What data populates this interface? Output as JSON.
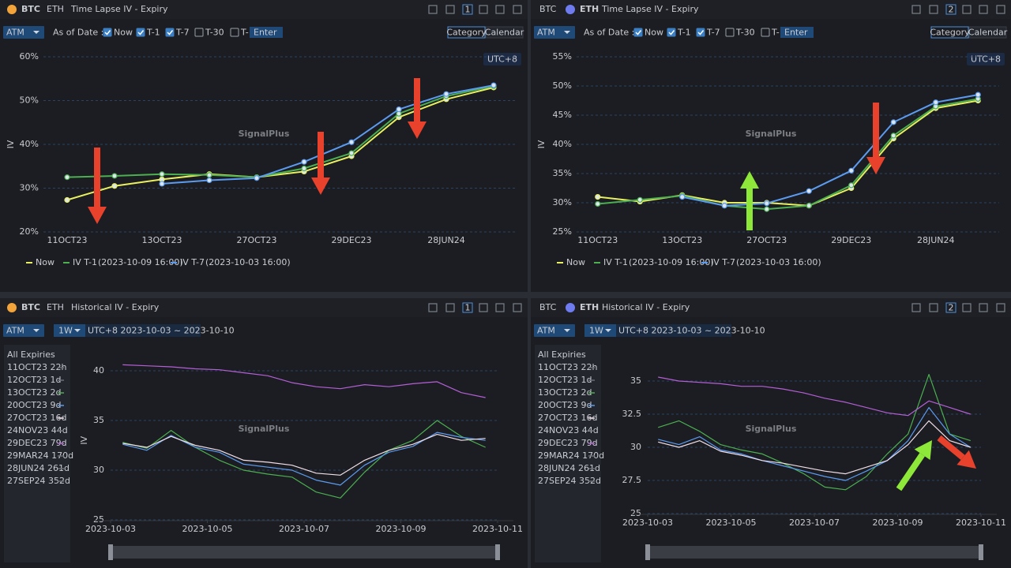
{
  "panels": [
    {
      "coins": [
        "BTC",
        "ETH"
      ],
      "active": "BTC",
      "title": "Time Lapse IV - Expiry",
      "number": "1",
      "mode": "ATM",
      "as_of": "As of Date :",
      "checks": [
        {
          "label": "Now",
          "checked": true
        },
        {
          "label": "T-1",
          "checked": true
        },
        {
          "label": "T-7",
          "checked": true
        },
        {
          "label": "T-30",
          "checked": false
        },
        {
          "label": "T-",
          "checked": false
        }
      ],
      "enter": "Enter",
      "tabs": [
        "Category",
        "Calendar"
      ],
      "tz": "UTC+8",
      "watermark": "SignalPlus"
    },
    {
      "coins": [
        "BTC",
        "ETH"
      ],
      "active": "ETH",
      "title": "Time Lapse IV - Expiry",
      "number": "2",
      "mode": "ATM",
      "as_of": "As of Date :",
      "checks": [
        {
          "label": "Now",
          "checked": true
        },
        {
          "label": "T-1",
          "checked": true
        },
        {
          "label": "T-7",
          "checked": true
        },
        {
          "label": "T-30",
          "checked": false
        },
        {
          "label": "T-",
          "checked": false
        }
      ],
      "enter": "Enter",
      "tabs": [
        "Category",
        "Calendar"
      ],
      "tz": "UTC+8",
      "watermark": "SignalPlus"
    },
    {
      "coins": [
        "BTC",
        "ETH"
      ],
      "active": "BTC",
      "title": "Historical IV - Expiry",
      "number": "1",
      "mode": "ATM",
      "period": "1W",
      "range": "UTC+8 2023-10-03 ~ 2023-10-10",
      "list_title": "All Expiries",
      "watermark": "SignalPlus"
    },
    {
      "coins": [
        "BTC",
        "ETH"
      ],
      "active": "ETH",
      "title": "Historical IV - Expiry",
      "number": "2",
      "mode": "ATM",
      "period": "1W",
      "range": "UTC+8 2023-10-03 ~ 2023-10-10",
      "list_title": "All Expiries",
      "watermark": "SignalPlus"
    }
  ],
  "chart_data": [
    {
      "type": "line",
      "y_label": "IV",
      "categories": [
        "11OCT23",
        null,
        "13OCT23",
        null,
        "27OCT23",
        null,
        "29DEC23",
        null,
        "28JUN24",
        null
      ],
      "series": [
        {
          "name": "Now",
          "color": "#e8f060",
          "values": [
            27.3,
            30.5,
            32.0,
            33.2,
            32.5,
            33.8,
            37.3,
            46.2,
            50.3,
            53.0
          ]
        },
        {
          "name": "IV T-1",
          "stamp": "(2023-10-09 16:00)",
          "color": "#4caf50",
          "values": [
            32.5,
            32.8,
            33.2,
            33.0,
            32.5,
            34.5,
            38.0,
            47.0,
            51.0,
            53.3
          ]
        },
        {
          "name": "IV T-7",
          "stamp": "(2023-10-03 16:00)",
          "color": "#5b9bf0",
          "values": [
            null,
            null,
            31.0,
            31.8,
            32.3,
            36.0,
            40.5,
            48.0,
            51.5,
            53.5
          ]
        }
      ],
      "ylim": [
        20,
        60
      ],
      "yticks": [
        {
          "value": 20,
          "label": "20%"
        },
        {
          "value": 30,
          "label": "30%"
        },
        {
          "value": 40,
          "label": "40%"
        },
        {
          "value": 50,
          "label": "50%"
        },
        {
          "value": 60,
          "label": "60%"
        }
      ],
      "grid": true
    },
    {
      "type": "line",
      "y_label": "IV",
      "categories": [
        "11OCT23",
        null,
        "13OCT23",
        null,
        "27OCT23",
        null,
        "29DEC23",
        null,
        "28JUN24",
        null
      ],
      "series": [
        {
          "name": "Now",
          "color": "#e8f060",
          "values": [
            31.0,
            30.2,
            31.3,
            30.0,
            30.0,
            29.5,
            32.5,
            41.0,
            46.2,
            47.5
          ]
        },
        {
          "name": "IV T-1",
          "stamp": "(2023-10-09 16:00)",
          "color": "#4caf50",
          "values": [
            29.8,
            30.5,
            31.2,
            29.5,
            28.9,
            29.5,
            33.0,
            41.5,
            46.5,
            47.8
          ]
        },
        {
          "name": "IV T-7",
          "stamp": "(2023-10-03 16:00)",
          "color": "#5b9bf0",
          "values": [
            null,
            null,
            31.0,
            29.5,
            29.9,
            32.0,
            35.5,
            43.8,
            47.2,
            48.5
          ]
        }
      ],
      "ylim": [
        25,
        55
      ],
      "yticks": [
        {
          "value": 25,
          "label": "25%"
        },
        {
          "value": 30,
          "label": "30%"
        },
        {
          "value": 35,
          "label": "35%"
        },
        {
          "value": 40,
          "label": "40%"
        },
        {
          "value": 45,
          "label": "45%"
        },
        {
          "value": 50,
          "label": "50%"
        },
        {
          "value": 55,
          "label": "55%"
        }
      ],
      "grid": true
    },
    {
      "type": "line",
      "y_label": "IV",
      "x": [
        0.25,
        0.75,
        1.25,
        1.75,
        2.25,
        2.75,
        3.25,
        3.75,
        4.25,
        4.75,
        5.25,
        5.75,
        6.25,
        6.75,
        7.25,
        7.75
      ],
      "xlim": [
        0,
        8
      ],
      "xticks": [
        {
          "value": 0,
          "label": "2023-10-03"
        },
        {
          "value": 2,
          "label": "2023-10-05"
        },
        {
          "value": 4,
          "label": "2023-10-07"
        },
        {
          "value": 6,
          "label": "2023-10-09"
        },
        {
          "value": 8,
          "label": "2023-10-11"
        }
      ],
      "series": [
        {
          "name": "11OCT23 22h",
          "color": "#6b6f78"
        },
        {
          "name": "12OCT23 1d",
          "color": "#6b6f78"
        },
        {
          "name": "13OCT23 2d",
          "color": "#4caf50",
          "values": [
            32.8,
            32.2,
            34.0,
            32.3,
            31.0,
            30.0,
            29.6,
            29.3,
            27.8,
            27.2,
            29.8,
            32.0,
            33.0,
            35.0,
            33.4,
            32.3
          ]
        },
        {
          "name": "20OCT23 9d",
          "color": "#5b9bf0",
          "values": [
            32.6,
            32.0,
            33.5,
            32.3,
            31.8,
            30.6,
            30.3,
            30.0,
            29.0,
            28.5,
            30.5,
            31.8,
            32.4,
            33.8,
            33.3,
            33.0
          ]
        },
        {
          "name": "27OCT23 16d",
          "color": "#f2dfe8",
          "values": [
            32.7,
            32.3,
            33.4,
            32.5,
            32.0,
            31.0,
            30.8,
            30.5,
            29.7,
            29.5,
            31.0,
            32.0,
            32.6,
            33.6,
            33.0,
            33.2
          ]
        },
        {
          "name": "24NOV23 44d",
          "color": "#6b6f78"
        },
        {
          "name": "29DEC23 79d",
          "color": "#b55fd6",
          "values": [
            40.6,
            40.5,
            40.4,
            40.2,
            40.1,
            39.8,
            39.5,
            38.8,
            38.4,
            38.2,
            38.6,
            38.4,
            38.7,
            38.9,
            37.8,
            37.3
          ]
        },
        {
          "name": "29MAR24 170d",
          "color": "#6b6f78"
        },
        {
          "name": "28JUN24 261d",
          "color": "#6b6f78"
        },
        {
          "name": "27SEP24 352d",
          "color": "#6b6f78"
        }
      ],
      "ylim": [
        25,
        41
      ],
      "yticks": [
        25,
        30,
        35,
        40
      ],
      "grid": true
    },
    {
      "type": "line",
      "y_label": "IV",
      "x": [
        0.25,
        0.75,
        1.25,
        1.75,
        2.25,
        2.75,
        3.25,
        3.75,
        4.25,
        4.75,
        5.25,
        5.75,
        6.25,
        6.75,
        7.25,
        7.75
      ],
      "xlim": [
        0,
        8
      ],
      "xticks": [
        {
          "value": 0,
          "label": "2023-10-03"
        },
        {
          "value": 2,
          "label": "2023-10-05"
        },
        {
          "value": 4,
          "label": "2023-10-07"
        },
        {
          "value": 6,
          "label": "2023-10-09"
        },
        {
          "value": 8,
          "label": "2023-10-11"
        }
      ],
      "series": [
        {
          "name": "11OCT23 22h",
          "color": "#6b6f78"
        },
        {
          "name": "12OCT23 1d",
          "color": "#6b6f78"
        },
        {
          "name": "13OCT23 2d",
          "color": "#4caf50",
          "values": [
            31.5,
            32.0,
            31.2,
            30.2,
            29.8,
            29.5,
            28.8,
            28.0,
            27.0,
            26.8,
            27.8,
            29.5,
            31.0,
            35.5,
            31.0,
            30.5
          ]
        },
        {
          "name": "20OCT23 9d",
          "color": "#5b9bf0",
          "values": [
            30.6,
            30.2,
            30.8,
            29.8,
            29.5,
            29.0,
            28.6,
            28.2,
            27.8,
            27.5,
            28.2,
            29.0,
            30.5,
            33.0,
            31.0,
            30.0
          ]
        },
        {
          "name": "27OCT23 16d",
          "color": "#f2dfe8",
          "values": [
            30.4,
            30.0,
            30.5,
            29.7,
            29.4,
            29.0,
            28.8,
            28.5,
            28.2,
            28.0,
            28.5,
            29.0,
            30.2,
            32.0,
            30.5,
            30.0
          ]
        },
        {
          "name": "24NOV23 44d",
          "color": "#6b6f78"
        },
        {
          "name": "29DEC23 79d",
          "color": "#b55fd6",
          "values": [
            35.3,
            35.0,
            34.9,
            34.8,
            34.6,
            34.6,
            34.4,
            34.1,
            33.7,
            33.4,
            33.0,
            32.6,
            32.4,
            33.5,
            33.0,
            32.5
          ]
        },
        {
          "name": "29MAR24 170d",
          "color": "#6b6f78"
        },
        {
          "name": "28JUN24 261d",
          "color": "#6b6f78"
        },
        {
          "name": "27SEP24 352d",
          "color": "#6b6f78"
        }
      ],
      "ylim": [
        25,
        36.5
      ],
      "yticks": [
        25,
        27.5,
        30,
        32.5,
        35
      ],
      "grid": true
    }
  ]
}
